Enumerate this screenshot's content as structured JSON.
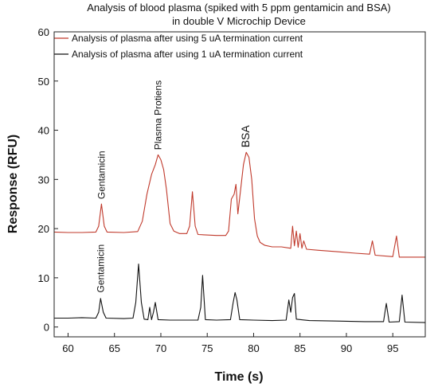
{
  "chart_data": {
    "type": "line",
    "title": "Analysis of blood plasma (spiked with 5 ppm gentamicin and BSA)",
    "subtitle": "in double V Microchip Device",
    "xlabel": "Time (s)",
    "ylabel": "Response (RFU)",
    "xlim": [
      58.5,
      98.5
    ],
    "ylim": [
      -2,
      60
    ],
    "x_ticks": [
      60,
      65,
      70,
      75,
      80,
      85,
      90,
      95
    ],
    "y_ticks": [
      0,
      10,
      20,
      30,
      40,
      50,
      60
    ],
    "legend_position": "top",
    "series": [
      {
        "name": "Analysis of plasma after using 5 uA termination current",
        "color": "#c0392b",
        "points": [
          [
            58.5,
            19.3
          ],
          [
            60,
            19.2
          ],
          [
            61.5,
            19.2
          ],
          [
            63,
            19.3
          ],
          [
            63.3,
            20.5
          ],
          [
            63.6,
            25.0
          ],
          [
            63.9,
            20.5
          ],
          [
            64.2,
            19.3
          ],
          [
            66,
            19.2
          ],
          [
            67.5,
            19.4
          ],
          [
            68,
            21.5
          ],
          [
            68.5,
            27.0
          ],
          [
            69,
            31.0
          ],
          [
            69.4,
            33.0
          ],
          [
            69.7,
            35.0
          ],
          [
            70,
            34.0
          ],
          [
            70.3,
            32.0
          ],
          [
            70.6,
            28.0
          ],
          [
            71,
            21.0
          ],
          [
            71.4,
            19.5
          ],
          [
            72,
            19.0
          ],
          [
            72.8,
            19.0
          ],
          [
            73.1,
            20.5
          ],
          [
            73.4,
            27.5
          ],
          [
            73.7,
            20.5
          ],
          [
            74,
            18.8
          ],
          [
            76,
            18.6
          ],
          [
            77,
            18.6
          ],
          [
            77.3,
            19.5
          ],
          [
            77.6,
            26.0
          ],
          [
            77.9,
            27.0
          ],
          [
            78.1,
            29.0
          ],
          [
            78.3,
            23.0
          ],
          [
            78.6,
            28.0
          ],
          [
            78.9,
            33.0
          ],
          [
            79.2,
            35.5
          ],
          [
            79.5,
            34.5
          ],
          [
            79.8,
            30.0
          ],
          [
            80.1,
            22.0
          ],
          [
            80.4,
            18.5
          ],
          [
            80.7,
            17.2
          ],
          [
            81.2,
            16.6
          ],
          [
            82,
            16.3
          ],
          [
            83,
            16.3
          ],
          [
            84,
            16.0
          ],
          [
            84.2,
            20.5
          ],
          [
            84.4,
            16.5
          ],
          [
            84.6,
            19.5
          ],
          [
            84.8,
            16.2
          ],
          [
            85,
            19.0
          ],
          [
            85.2,
            16.0
          ],
          [
            85.4,
            17.5
          ],
          [
            85.7,
            15.8
          ],
          [
            87,
            15.6
          ],
          [
            89,
            15.3
          ],
          [
            91,
            15.0
          ],
          [
            92.5,
            14.8
          ],
          [
            92.8,
            17.5
          ],
          [
            93.1,
            14.6
          ],
          [
            95,
            14.3
          ],
          [
            95.4,
            18.5
          ],
          [
            95.7,
            14.2
          ],
          [
            98.5,
            14.2
          ]
        ]
      },
      {
        "name": "Analysis of plasma after using 1 uA termination current",
        "color": "#111111",
        "points": [
          [
            58.5,
            1.8
          ],
          [
            60,
            1.8
          ],
          [
            61.5,
            1.9
          ],
          [
            63,
            1.8
          ],
          [
            63.3,
            3.0
          ],
          [
            63.5,
            5.8
          ],
          [
            63.8,
            3.0
          ],
          [
            64.1,
            1.8
          ],
          [
            66,
            1.7
          ],
          [
            67,
            1.8
          ],
          [
            67.3,
            5.0
          ],
          [
            67.6,
            12.8
          ],
          [
            67.9,
            5.0
          ],
          [
            68.2,
            1.6
          ],
          [
            68.6,
            1.5
          ],
          [
            68.8,
            4.0
          ],
          [
            69,
            1.5
          ],
          [
            69.2,
            3.0
          ],
          [
            69.4,
            5.0
          ],
          [
            69.7,
            1.5
          ],
          [
            71,
            1.4
          ],
          [
            74,
            1.4
          ],
          [
            74.3,
            4.0
          ],
          [
            74.5,
            10.5
          ],
          [
            74.8,
            1.5
          ],
          [
            76,
            1.4
          ],
          [
            77.5,
            1.5
          ],
          [
            77.8,
            5.0
          ],
          [
            78,
            7.0
          ],
          [
            78.2,
            5.5
          ],
          [
            78.5,
            1.5
          ],
          [
            80,
            1.4
          ],
          [
            82,
            1.3
          ],
          [
            83.5,
            1.4
          ],
          [
            83.8,
            5.5
          ],
          [
            84,
            3.0
          ],
          [
            84.2,
            6.0
          ],
          [
            84.4,
            6.8
          ],
          [
            84.6,
            1.6
          ],
          [
            86,
            1.3
          ],
          [
            89,
            1.2
          ],
          [
            92,
            1.1
          ],
          [
            94,
            1.1
          ],
          [
            94.3,
            4.8
          ],
          [
            94.6,
            1.0
          ],
          [
            95.7,
            1.1
          ],
          [
            96,
            6.5
          ],
          [
            96.3,
            1.0
          ],
          [
            98.5,
            0.9
          ]
        ]
      }
    ],
    "annotations": [
      {
        "text": "Gentamicin",
        "x": 63.6,
        "y": 25.5
      },
      {
        "text": "Plasma Protiens",
        "x": 69.7,
        "y": 35.5
      },
      {
        "text": "BSA",
        "x": 79.2,
        "y": 36.0
      },
      {
        "text": "Gentamicin",
        "x": 63.5,
        "y": 6.5
      }
    ]
  }
}
